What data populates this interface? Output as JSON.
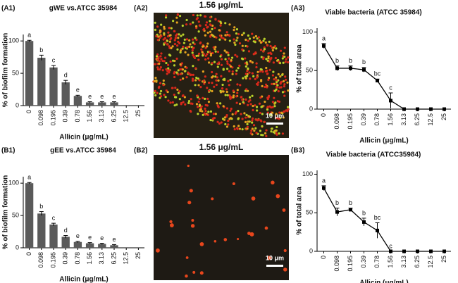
{
  "chart_data": [
    {
      "type": "bar",
      "panel_label": "(A1)",
      "title": "gWE vs.ATCC 35984",
      "ylabel": "% of biofilm formation",
      "xlabel": "Allicin (μg/mL)",
      "categories": [
        "0",
        "0.098",
        "0.195",
        "0.39",
        "0.78",
        "1.56",
        "3.13",
        "6.25",
        "12.5",
        "25"
      ],
      "values": [
        100,
        74,
        59,
        36,
        15,
        5,
        5,
        5,
        0,
        0
      ],
      "errors": [
        1,
        4,
        3,
        3,
        1,
        1,
        1,
        1,
        0,
        0
      ],
      "letters": [
        "a",
        "b",
        "c",
        "d",
        "e",
        "e",
        "e",
        "e",
        null,
        null
      ],
      "color": "#5a5a5a",
      "ylim": [
        0,
        110
      ],
      "yticks": [
        0,
        50,
        100
      ]
    },
    {
      "type": "line",
      "panel_label": "(A3)",
      "title": "Viable bacteria (ATCC 35984)",
      "ylabel": "% of total area",
      "xlabel": "Allicin (μg/mL)",
      "categories": [
        "0",
        "0.098",
        "0.195",
        "0.39",
        "0.78",
        "1.56",
        "3.13",
        "6.25",
        "12.5",
        "25"
      ],
      "values": [
        82,
        53,
        53,
        51,
        37,
        11,
        0,
        0,
        0,
        0
      ],
      "errors": [
        3,
        3,
        3,
        3,
        2,
        10,
        0,
        0,
        0,
        0
      ],
      "letters": [
        "a",
        "b",
        "b",
        "b",
        "bc",
        "c",
        null,
        null,
        null,
        null
      ],
      "color": "#000000",
      "ylim": [
        0,
        105
      ],
      "yticks": [
        0,
        50,
        100
      ]
    },
    {
      "type": "bar",
      "panel_label": "(B1)",
      "title": "gEE vs.ATCC 35984",
      "ylabel": "% of biofilm formation",
      "xlabel": "Allicin (μg/mL)",
      "categories": [
        "0",
        "0.098",
        "0.195",
        "0.39",
        "0.78",
        "1.56",
        "3.13",
        "6.25",
        "12.5",
        "25"
      ],
      "values": [
        100,
        53,
        36,
        17,
        9,
        7,
        6,
        4,
        0,
        0
      ],
      "errors": [
        1,
        3,
        2,
        2,
        1,
        1,
        1,
        1,
        0,
        0
      ],
      "letters": [
        "a",
        "b",
        "c",
        "d",
        "e",
        "e",
        "e",
        "e",
        null,
        null
      ],
      "color": "#5a5a5a",
      "ylim": [
        0,
        110
      ],
      "yticks": [
        0,
        50,
        100
      ]
    },
    {
      "type": "line",
      "panel_label": "(B3)",
      "title": "Viable bacteria (ATCC35984)",
      "ylabel": "% of total area",
      "xlabel": "Allicin (μg/mL)",
      "categories": [
        "0",
        "0.098",
        "0.195",
        "0.39",
        "0.78",
        "1.56",
        "3.13",
        "6.25",
        "12.5",
        "25"
      ],
      "values": [
        82,
        51,
        54,
        38,
        27,
        0,
        0,
        0,
        0,
        0
      ],
      "errors": [
        3,
        5,
        2,
        5,
        10,
        0,
        0,
        0,
        0,
        0
      ],
      "letters": [
        "a",
        "b",
        "b",
        "b",
        "bc",
        "c",
        null,
        null,
        null,
        null
      ],
      "color": "#000000",
      "ylim": [
        0,
        105
      ],
      "yticks": [
        0,
        50,
        100
      ]
    }
  ],
  "images": [
    {
      "label": "(A2)",
      "title": "1.56 μg/mL",
      "scale": "10 μm"
    },
    {
      "label": "(B2)",
      "title": "1.56 μg/mL",
      "scale": "10 μm"
    }
  ]
}
